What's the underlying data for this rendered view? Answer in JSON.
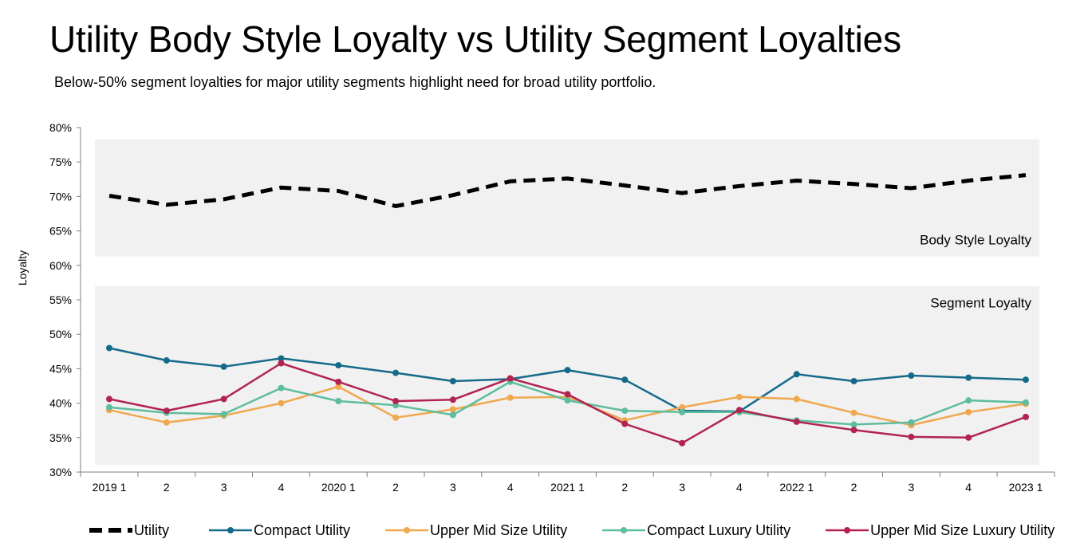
{
  "title": "Utility Body Style Loyalty vs Utility Segment Loyalties",
  "subtitle": "Below-50% segment loyalties for major utility segments highlight need for broad utility portfolio.",
  "chart_data": {
    "type": "line",
    "ylabel": "Loyalty",
    "xlabel": "",
    "ylim": [
      30,
      80
    ],
    "y_ticks": [
      "30%",
      "35%",
      "40%",
      "45%",
      "50%",
      "55%",
      "60%",
      "65%",
      "70%",
      "75%",
      "80%"
    ],
    "y_tick_values": [
      30,
      35,
      40,
      45,
      50,
      55,
      60,
      65,
      70,
      75,
      80
    ],
    "categories": [
      "2019 1",
      "2",
      "3",
      "4",
      "2020 1",
      "2",
      "3",
      "4",
      "2021 1",
      "2",
      "3",
      "4",
      "2022 1",
      "2",
      "3",
      "4",
      "2023 1"
    ],
    "panels": [
      {
        "label": "Body Style Loyalty",
        "range": [
          61.3,
          78.3
        ]
      },
      {
        "label": "Segment Loyalty",
        "range": [
          31.0,
          57.0
        ]
      }
    ],
    "grid": false,
    "legend_position": "bottom",
    "series": [
      {
        "name": "Utility",
        "color": "#000000",
        "style": "dashed",
        "values": [
          70.1,
          68.8,
          69.6,
          71.3,
          70.8,
          68.6,
          70.2,
          72.2,
          72.6,
          71.6,
          70.5,
          71.5,
          72.3,
          71.8,
          71.2,
          72.3,
          73.1
        ]
      },
      {
        "name": "Compact Utility",
        "color": "#156a8a",
        "style": "solid",
        "values": [
          48.0,
          46.2,
          45.3,
          46.5,
          45.5,
          44.4,
          43.2,
          43.5,
          44.8,
          43.4,
          38.9,
          38.8,
          44.2,
          43.2,
          44.0,
          43.7,
          43.4
        ]
      },
      {
        "name": "Upper Mid Size Utility",
        "color": "#f0a84e",
        "style": "solid",
        "values": [
          39.0,
          37.2,
          38.2,
          40.0,
          42.4,
          37.9,
          39.1,
          40.8,
          40.9,
          37.5,
          39.4,
          40.9,
          40.6,
          38.6,
          36.8,
          38.7,
          39.9
        ]
      },
      {
        "name": "Compact Luxury Utility",
        "color": "#5ebd9e",
        "style": "solid",
        "values": [
          39.4,
          38.6,
          38.4,
          42.2,
          40.3,
          39.7,
          38.3,
          43.1,
          40.4,
          38.9,
          38.7,
          38.7,
          37.5,
          36.9,
          37.2,
          40.4,
          40.1
        ]
      },
      {
        "name": "Upper Mid Size Luxury Utility",
        "color": "#b1244f",
        "style": "solid",
        "values": [
          40.6,
          38.9,
          40.6,
          45.8,
          43.1,
          40.3,
          40.5,
          43.6,
          41.3,
          37.0,
          34.2,
          39.0,
          37.3,
          36.1,
          35.1,
          35.0,
          38.0
        ]
      }
    ]
  }
}
